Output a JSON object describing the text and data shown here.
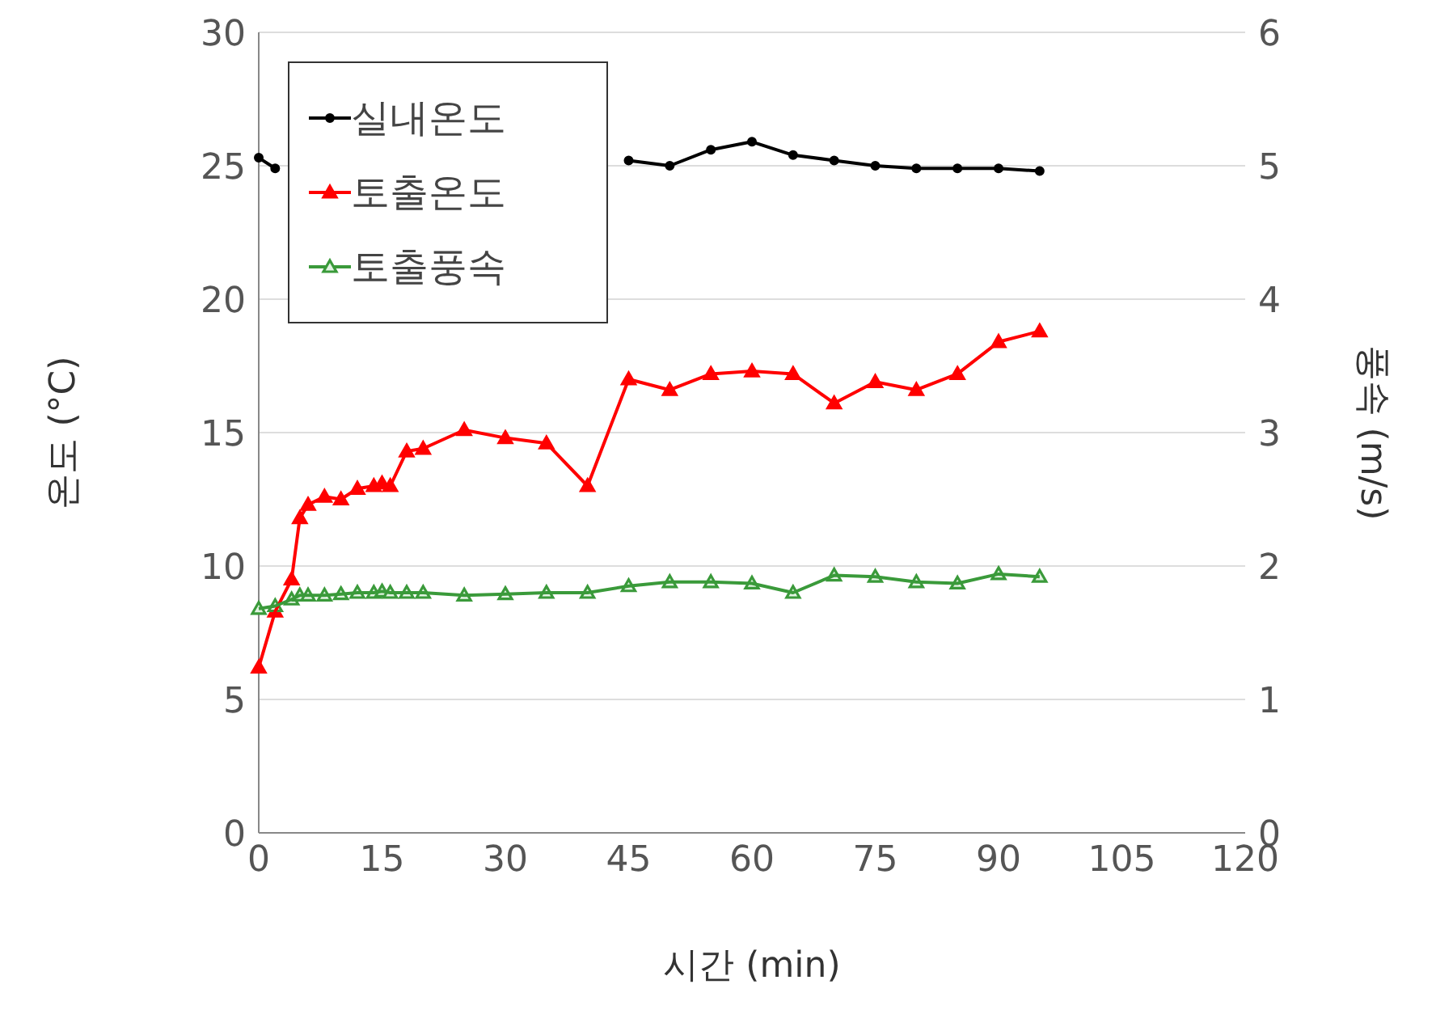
{
  "chart_data": {
    "type": "line",
    "xlabel": "시간 (min)",
    "ylabel": "온도 (°C)",
    "y2label": "풍속 (m/s)",
    "x": [
      0,
      2,
      4,
      5,
      6,
      8,
      10,
      12,
      14,
      15,
      16,
      18,
      20,
      25,
      30,
      35,
      40,
      45,
      50,
      55,
      60,
      65,
      70,
      75,
      80,
      85,
      90,
      95
    ],
    "series": [
      {
        "name": "실내온도",
        "color": "#000000",
        "marker": "circle",
        "values": [
          25.3,
          24.9,
          null,
          null,
          null,
          null,
          null,
          null,
          null,
          null,
          null,
          null,
          null,
          null,
          null,
          null,
          null,
          25.2,
          25.0,
          25.6,
          25.9,
          25.4,
          25.2,
          25.0,
          24.9,
          24.9,
          24.9,
          24.8
        ]
      },
      {
        "name": "토출온도",
        "color": "#ff0000",
        "marker": "triangle",
        "values": [
          6.2,
          8.3,
          9.5,
          11.8,
          12.3,
          12.6,
          12.5,
          12.9,
          13.0,
          13.1,
          13.0,
          14.3,
          14.4,
          15.1,
          14.8,
          14.6,
          13.0,
          17.0,
          16.6,
          17.2,
          17.3,
          17.2,
          16.1,
          16.9,
          16.6,
          17.2,
          18.4,
          18.8
        ]
      },
      {
        "name": "토출풍속",
        "color": "#3a9a3a",
        "marker": "triangle",
        "axis": "y2",
        "values": [
          1.68,
          1.7,
          1.75,
          1.78,
          1.78,
          1.78,
          1.79,
          1.8,
          1.8,
          1.81,
          1.8,
          1.8,
          1.8,
          1.78,
          1.79,
          1.8,
          1.8,
          1.85,
          1.88,
          1.88,
          1.87,
          1.8,
          1.93,
          1.92,
          1.88,
          1.87,
          1.94,
          1.92
        ]
      }
    ],
    "xlim": [
      0,
      120
    ],
    "xticks": [
      0,
      15,
      30,
      45,
      60,
      75,
      90,
      105,
      120
    ],
    "ylim": [
      0,
      30
    ],
    "yticks": [
      0,
      5,
      10,
      15,
      20,
      25,
      30
    ],
    "y2lim": [
      0,
      6
    ],
    "y2ticks": [
      0,
      1,
      2,
      3,
      4,
      5,
      6
    ],
    "grid": "y",
    "legend": "top left",
    "line_style": "solid"
  }
}
